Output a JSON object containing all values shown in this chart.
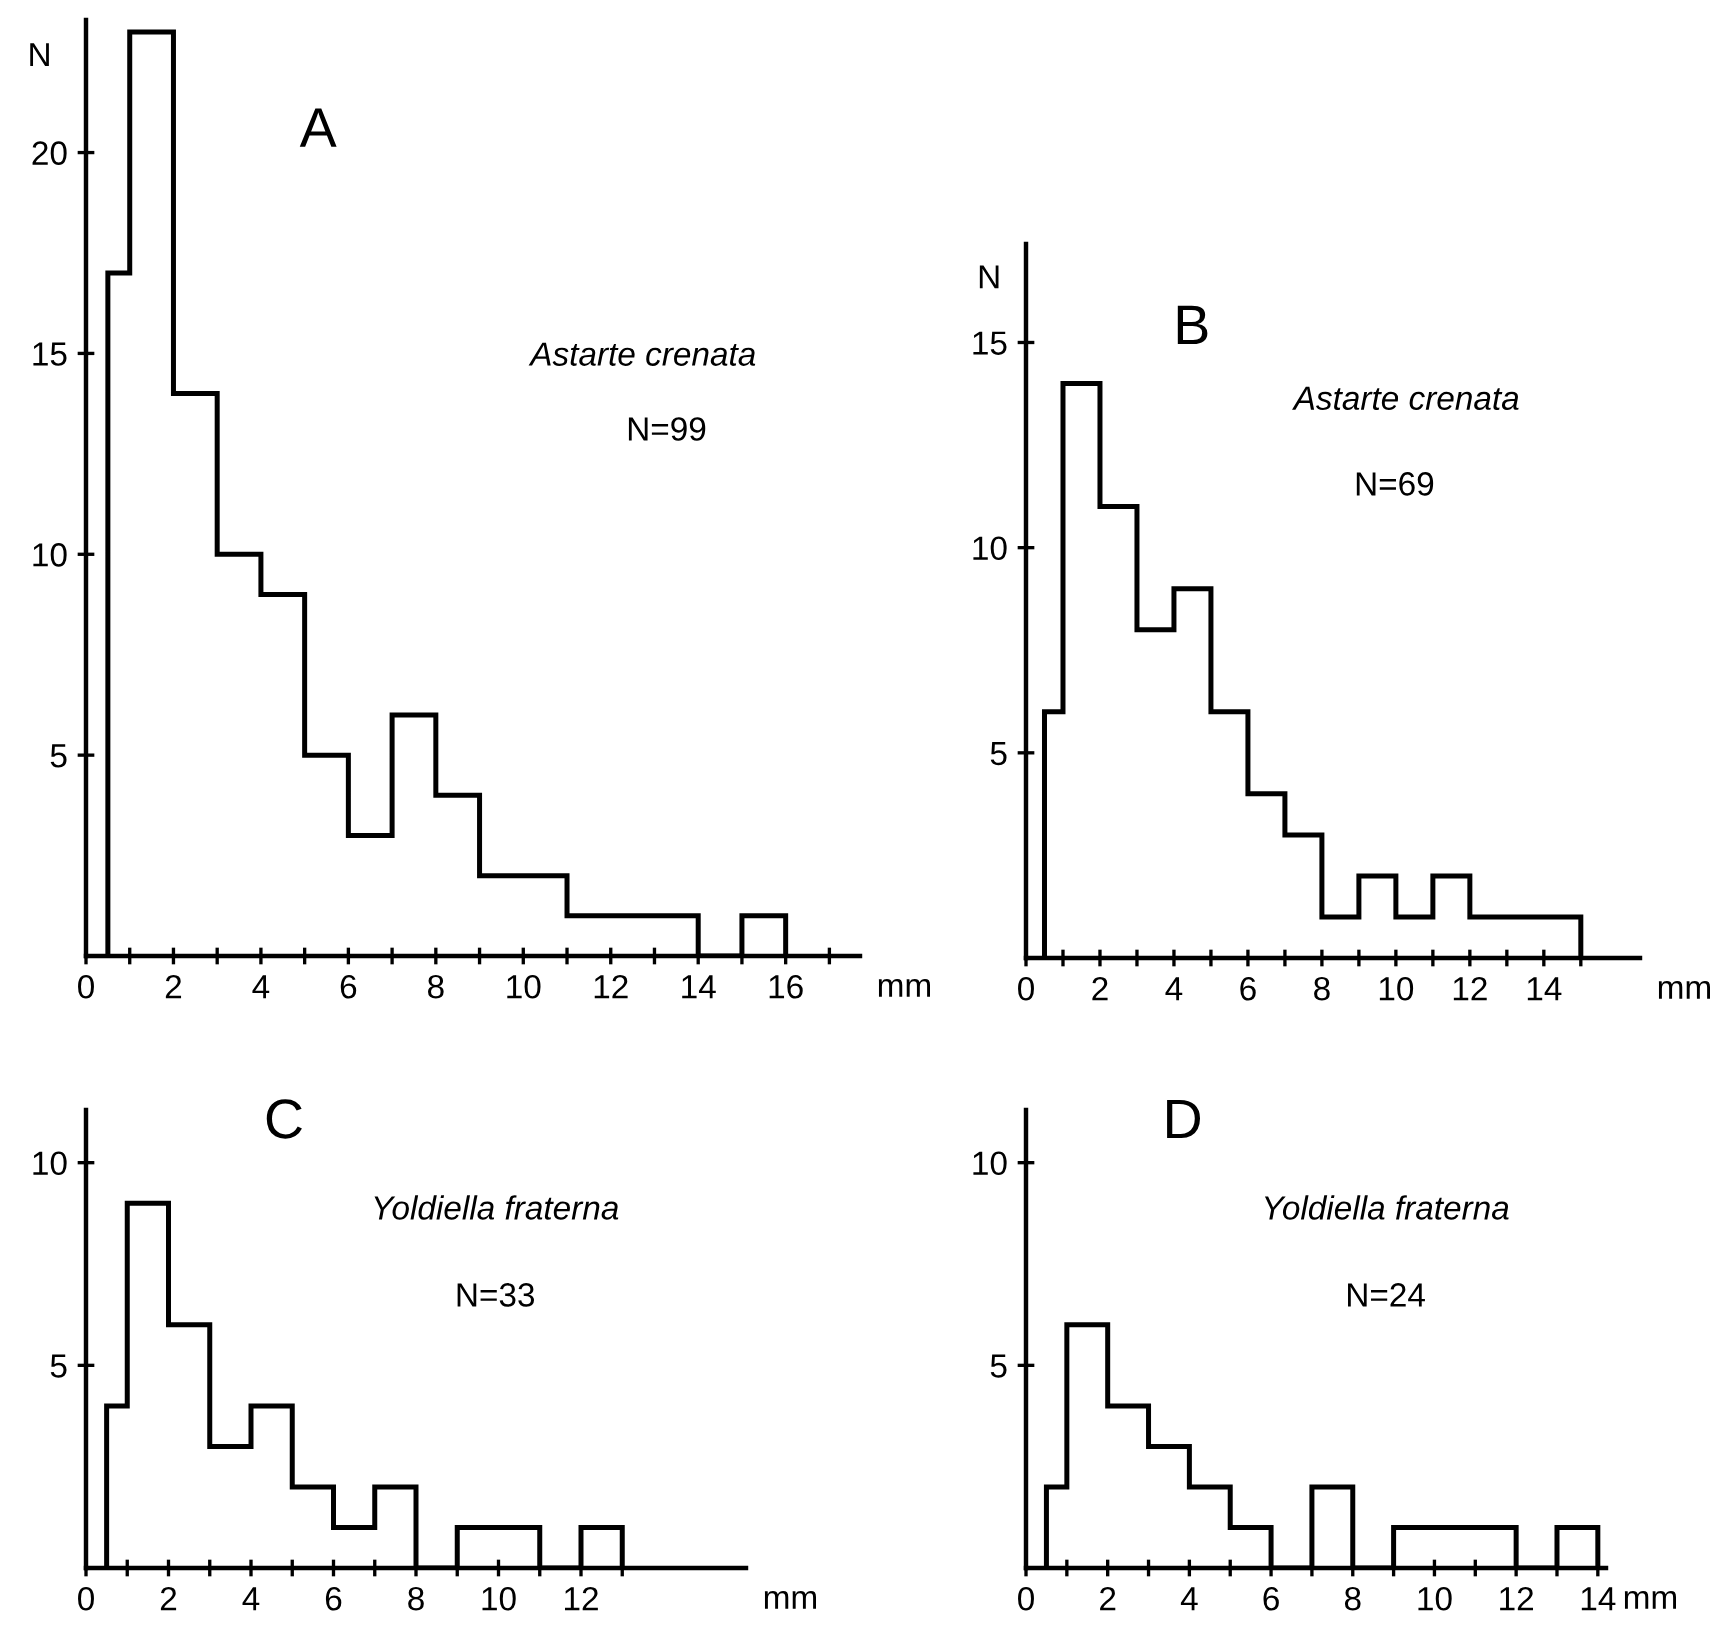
{
  "chart_data": [
    {
      "type": "histogram",
      "title": "A",
      "ylabel": "N",
      "xlabel": "mm",
      "annotations": [
        "Astarte crenata",
        "N=99"
      ],
      "color": "#000000",
      "bins": [
        0.5,
        1,
        2,
        3,
        4,
        5,
        6,
        7,
        8,
        9,
        10,
        11,
        12,
        13,
        14,
        15,
        16
      ],
      "values": [
        17,
        23,
        14,
        10,
        9,
        5,
        3,
        6,
        4,
        2,
        2,
        1,
        1,
        1,
        0,
        1
      ],
      "xlim": [
        0,
        17.7
      ],
      "ylim": [
        0,
        23.3
      ],
      "xticks": [
        0,
        {
          "value": 1,
          "label": null
        },
        2,
        {
          "value": 3,
          "label": null
        },
        4,
        {
          "value": 5,
          "label": null
        },
        6,
        {
          "value": 7,
          "label": null
        },
        8,
        {
          "value": 9,
          "label": null
        },
        10,
        {
          "value": 11,
          "label": null
        },
        12,
        {
          "value": 13,
          "label": null
        },
        14,
        {
          "value": 15,
          "label": null
        },
        16,
        {
          "value": 17,
          "label": null
        }
      ],
      "yticks": [
        5,
        10,
        15,
        20
      ],
      "grid": false,
      "legend": false
    },
    {
      "type": "histogram",
      "title": "B",
      "ylabel": "N",
      "xlabel": "mm",
      "annotations": [
        "Astarte crenata",
        "N=69"
      ],
      "color": "#000000",
      "bins": [
        0.5,
        1,
        2,
        3,
        4,
        5,
        6,
        7,
        8,
        9,
        10,
        11,
        12,
        13,
        14,
        15
      ],
      "values": [
        6,
        14,
        11,
        8,
        9,
        6,
        4,
        3,
        1,
        2,
        1,
        2,
        1,
        1,
        1
      ],
      "xlim": [
        0,
        16.6
      ],
      "ylim": [
        0,
        17.4
      ],
      "xticks": [
        0,
        {
          "value": 1,
          "label": null
        },
        2,
        {
          "value": 3,
          "label": null
        },
        4,
        {
          "value": 5,
          "label": null
        },
        6,
        {
          "value": 7,
          "label": null
        },
        8,
        {
          "value": 9,
          "label": null
        },
        10,
        {
          "value": 11,
          "label": null
        },
        12,
        {
          "value": 13,
          "label": null
        },
        14,
        {
          "value": 15,
          "label": null
        }
      ],
      "yticks": [
        5,
        10,
        15
      ],
      "grid": false,
      "legend": false
    },
    {
      "type": "histogram",
      "title": "C",
      "xlabel": "mm",
      "annotations": [
        "Yoldiella fraterna",
        "N=33"
      ],
      "color": "#000000",
      "bins": [
        0.5,
        1,
        2,
        3,
        4,
        5,
        6,
        7,
        8,
        9,
        10,
        11,
        12,
        13
      ],
      "values": [
        4,
        9,
        6,
        3,
        4,
        2,
        1,
        2,
        0,
        1,
        1,
        0,
        1
      ],
      "xlim": [
        0,
        16
      ],
      "ylim": [
        0,
        11.3
      ],
      "xticks": [
        0,
        {
          "value": 1,
          "label": null
        },
        2,
        {
          "value": 3,
          "label": null
        },
        4,
        {
          "value": 5,
          "label": null
        },
        6,
        {
          "value": 7,
          "label": null
        },
        8,
        {
          "value": 9,
          "label": null
        },
        10,
        {
          "value": 11,
          "label": null
        },
        12,
        {
          "value": 13,
          "label": null
        }
      ],
      "yticks": [
        5,
        10
      ],
      "grid": false,
      "legend": false
    },
    {
      "type": "histogram",
      "title": "D",
      "xlabel": "mm",
      "annotations": [
        "Yoldiella fraterna",
        "N=24"
      ],
      "color": "#000000",
      "bins": [
        0.5,
        1,
        2,
        3,
        4,
        5,
        6,
        7,
        8,
        9,
        10,
        11,
        12,
        13,
        14
      ],
      "values": [
        2,
        6,
        4,
        3,
        2,
        1,
        0,
        2,
        0,
        1,
        1,
        1,
        0,
        1
      ],
      "xlim": [
        0,
        14.2
      ],
      "ylim": [
        0,
        11.3
      ],
      "xticks": [
        0,
        {
          "value": 1,
          "label": null
        },
        2,
        {
          "value": 3,
          "label": null
        },
        4,
        {
          "value": 5,
          "label": null
        },
        6,
        {
          "value": 7,
          "label": null
        },
        8,
        {
          "value": 9,
          "label": null
        },
        10,
        {
          "value": 11,
          "label": null
        },
        12,
        {
          "value": 13,
          "label": null
        },
        14
      ],
      "yticks": [
        5,
        10
      ],
      "grid": false,
      "legend": false
    }
  ]
}
